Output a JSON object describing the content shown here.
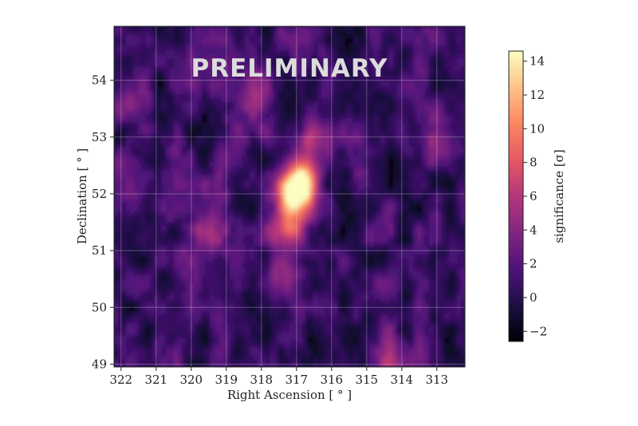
{
  "chart_data": {
    "type": "heatmap",
    "watermark": "PRELIMINARY",
    "xlabel": "Right Ascension [$^\\circ$]",
    "xlabel_display": "Right Ascension [ ° ]",
    "ylabel_display": "Declination [ ° ]",
    "colorbar_label_display": "significance [σ]",
    "x_ticks": [
      "322",
      "321",
      "320",
      "319",
      "318",
      "317",
      "316",
      "315",
      "314",
      "313"
    ],
    "y_ticks": [
      "49",
      "50",
      "51",
      "52",
      "53",
      "54"
    ],
    "colorbar_ticks": [
      "−2",
      "0",
      "2",
      "4",
      "6",
      "8",
      "10",
      "12",
      "14"
    ],
    "x_range_deg": [
      322.2,
      312.2
    ],
    "y_range_deg": [
      48.95,
      54.95
    ],
    "colorbar_range": [
      -2.6,
      14.6
    ],
    "x_reversed": true,
    "grid": true,
    "colormap": "magma",
    "colormap_stops": [
      "#000004",
      "#1c1044",
      "#4f127b",
      "#812581",
      "#b5367a",
      "#e55964",
      "#fb8761",
      "#fec287",
      "#fcfdbf"
    ],
    "hotspots": [
      {
        "ra": 317.1,
        "dec": 51.95,
        "significance": 14.0
      },
      {
        "ra": 316.8,
        "dec": 52.2,
        "significance": 9.0
      },
      {
        "ra": 317.3,
        "dec": 51.4,
        "significance": 6.0
      },
      {
        "ra": 317.4,
        "dec": 50.55,
        "significance": 4.5
      },
      {
        "ra": 319.6,
        "dec": 51.3,
        "significance": 4.5
      },
      {
        "ra": 318.0,
        "dec": 53.7,
        "significance": 4.0
      },
      {
        "ra": 316.6,
        "dec": 52.9,
        "significance": 4.0
      },
      {
        "ra": 321.7,
        "dec": 53.8,
        "significance": 3.5
      },
      {
        "ra": 314.4,
        "dec": 49.1,
        "significance": 3.5
      },
      {
        "ra": 313.2,
        "dec": 53.0,
        "significance": 3.0
      }
    ]
  }
}
